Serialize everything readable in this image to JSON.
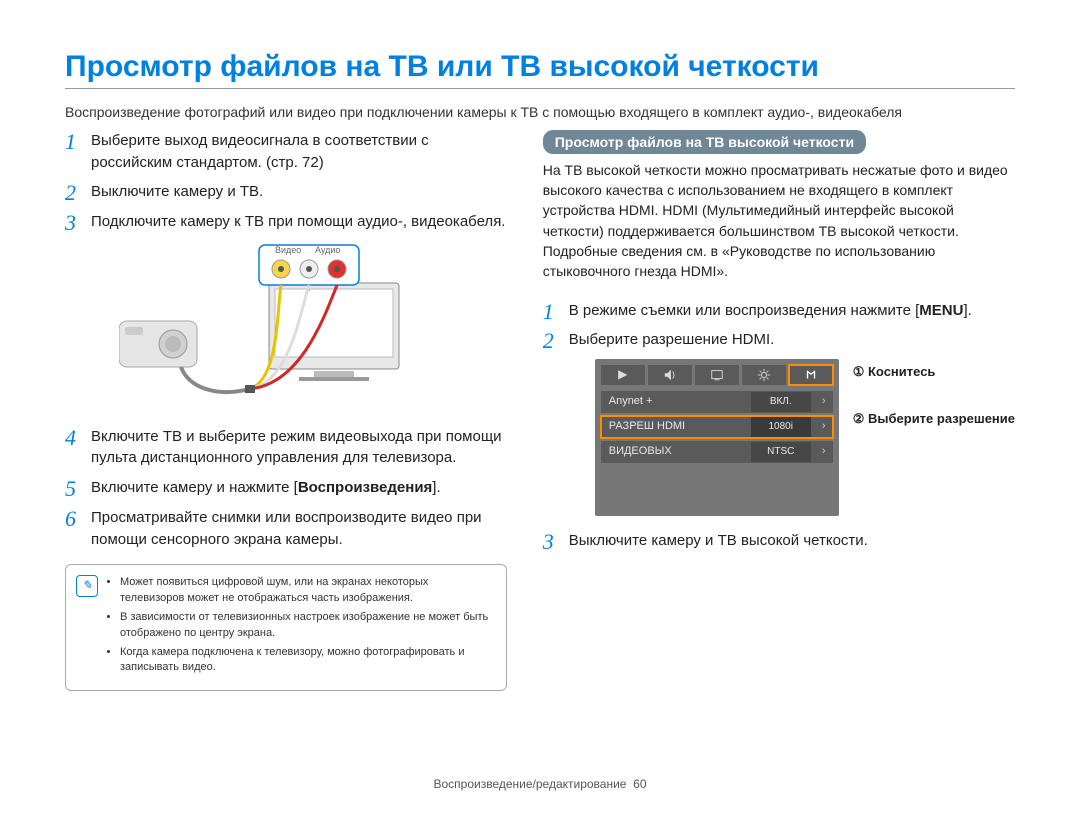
{
  "title": "Просмотр файлов на ТВ или ТВ высокой четкости",
  "intro": "Воспроизведение фотографий или видео при подключении камеры к ТВ с помощью входящего в комплект аудио-, видеокабеля",
  "left_steps": [
    "Выберите выход видеосигнала в соответствии с российским стандартом. (стр. 72)",
    "Выключите камеру и ТВ.",
    "Подключите камеру к ТВ при помощи аудио-, видеокабеля.",
    "Включите ТВ и выберите режим видеовыхода при помощи пульта дистанционного управления для телевизора.",
    "Включите камеру и нажмите [<b>Воспроизведения</b>].",
    "Просматривайте снимки или воспроизводите видео при помощи сенсорного экрана камеры."
  ],
  "cable": {
    "video": "Видео",
    "audio": "Аудио"
  },
  "notes": [
    "Может появиться цифровой шум, или на экранах некоторых телевизоров может не отображаться часть изображения.",
    "В зависимости от телевизионных настроек изображение не может быть отображено по центру экрана.",
    "Когда камера подключена к телевизору, можно фотографировать и записывать видео."
  ],
  "right_header": "Просмотр файлов на ТВ высокой четкости",
  "right_text": "На ТВ высокой четкости можно просматривать несжатые фото и видео высокого качества с использованием не входящего в комплект устройства HDMI. HDMI (Мультимедийный интерфейс высокой четкости) поддерживается большинством ТВ высокой четкости. Подробные сведения см. в «Руководстве по использованию стыковочного гнезда HDMI».",
  "right_steps": [
    "В режиме съемки или воспроизведения нажмите [<b>MENU</b>].",
    "Выберите разрешение HDMI.",
    "Выключите камеру и ТВ высокой четкости."
  ],
  "menu": {
    "rows": [
      {
        "label": "Anynet +",
        "value": "ВКЛ.",
        "hl": false
      },
      {
        "label": "РАЗРЕШ HDMI",
        "value": "1080i",
        "hl": true
      },
      {
        "label": "ВИДЕОВЫХ",
        "value": "NTSC",
        "hl": false
      }
    ]
  },
  "callouts": {
    "c1": "① Коснитесь",
    "c2": "② Выберите разрешение"
  },
  "footer_section": "Воспроизведение/редактирование",
  "footer_page": "60"
}
